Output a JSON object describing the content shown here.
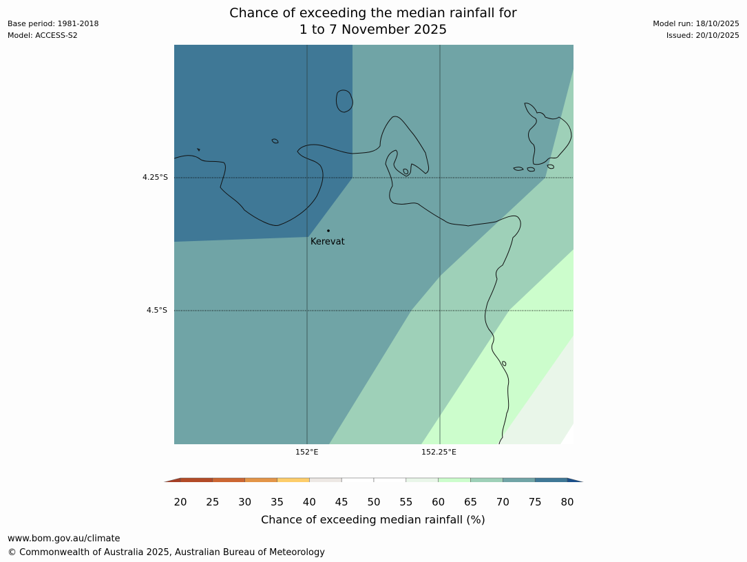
{
  "header": {
    "base_period": "Base period: 1981-2018",
    "model": "Model: ACCESS-S2",
    "title_line1": "Chance of exceeding the median rainfall for",
    "title_line2": "1 to 7 November 2025",
    "model_run": "Model run: 18/10/2025",
    "issued": "Issued: 20/10/2025"
  },
  "map": {
    "lat_labels": [
      "4.25°S",
      "4.5°S"
    ],
    "lon_labels": [
      "152°E",
      "152.25°E"
    ],
    "place_label": "Kerevat"
  },
  "colorbar": {
    "ticks": [
      "20",
      "25",
      "30",
      "35",
      "40",
      "45",
      "50",
      "55",
      "60",
      "65",
      "70",
      "75",
      "80"
    ],
    "colors": [
      "#a63f26",
      "#b34b27",
      "#cc6632",
      "#e39548",
      "#fdcd6a",
      "#ede8e4",
      "#ffffff",
      "#ffffff",
      "#e9f6e9",
      "#ccfdcc",
      "#9ed0b8",
      "#70a4a6",
      "#3f7896",
      "#1a4f8a"
    ],
    "title": "Chance of exceeding median rainfall (%)"
  },
  "footer": {
    "url": "www.bom.gov.au/climate",
    "copyright": "© Commonwealth of Australia 2025, Australian Bureau of Meteorology"
  }
}
